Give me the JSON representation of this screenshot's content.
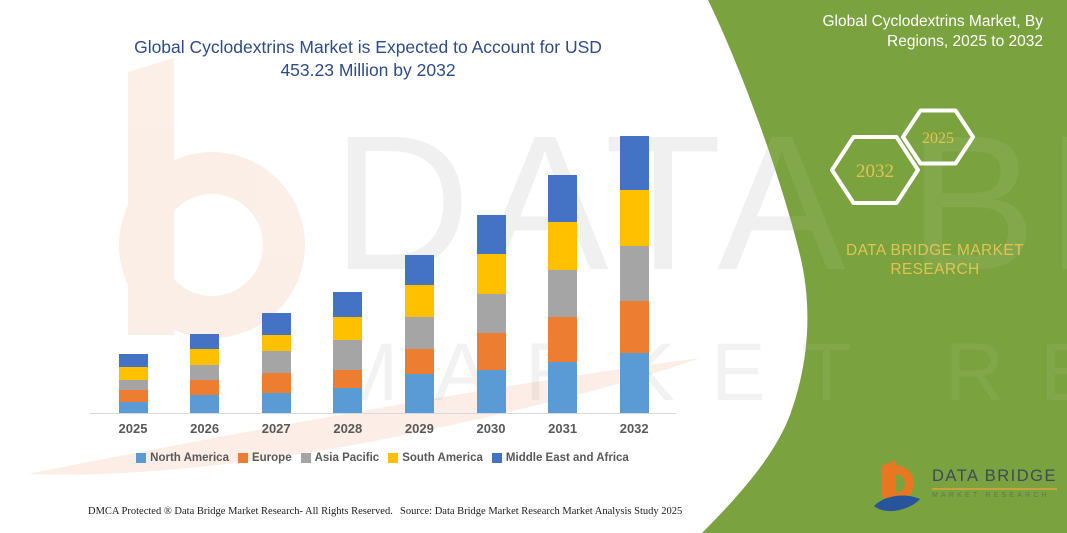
{
  "header": {
    "title_line1": "Global Cyclodextrins Market is Expected to Account for USD",
    "title_line2": "453.23 Million by 2032"
  },
  "side_panel": {
    "title_line1": "Global Cyclodextrins Market, By",
    "title_line2": "Regions, 2025 to 2032",
    "hexagon_years": [
      "2032",
      "2025"
    ],
    "brand_line1": "DATA BRIDGE MARKET",
    "brand_line2": "RESEARCH",
    "logo_text": "DATA BRIDGE",
    "logo_subtext": "MARKET RESEARCH",
    "colors": {
      "green": "#7AA23F",
      "gold": "#E3C352",
      "white": "#FFFFFF"
    }
  },
  "watermark": {
    "line1": "DATA BRIDGE",
    "line2": "MARKET RESEARCH"
  },
  "footer": {
    "left_text": "DMCA Protected ® Data Bridge Market Research-  All Rights Reserved.",
    "right_text": "Source: Data Bridge Market Research  Market Analysis Study 2025"
  },
  "chart_data": {
    "type": "bar",
    "stacked": true,
    "title": "Global Cyclodextrins Market is Expected to Account for USD 453.23 Million by 2032",
    "unit": "USD Million",
    "categories": [
      "2025",
      "2026",
      "2027",
      "2028",
      "2029",
      "2030",
      "2031",
      "2032"
    ],
    "series": [
      {
        "name": "North America",
        "color": "#5B9BD5",
        "values": [
          18,
          30,
          33,
          41,
          64,
          70,
          84,
          98
        ]
      },
      {
        "name": "Europe",
        "color": "#ED7D31",
        "values": [
          19,
          24,
          33,
          30,
          41,
          61,
          73,
          85
        ]
      },
      {
        "name": "Asia Pacific",
        "color": "#A5A5A5",
        "values": [
          17,
          24,
          35,
          48,
          52,
          64,
          77,
          90
        ]
      },
      {
        "name": "South America",
        "color": "#FFC000",
        "values": [
          22,
          27,
          27,
          39,
          52,
          66,
          79,
          92
        ]
      },
      {
        "name": "Middle East and Africa",
        "color": "#4472C4",
        "values": [
          20,
          25,
          36,
          40,
          50,
          63,
          76,
          88
        ]
      }
    ],
    "totals": [
      96,
      130,
      164,
      198,
      259,
      324,
      389,
      453.23
    ],
    "ylim": [
      0,
      470
    ],
    "grid": false,
    "value_axis_visible": false,
    "legend_position": "bottom"
  }
}
